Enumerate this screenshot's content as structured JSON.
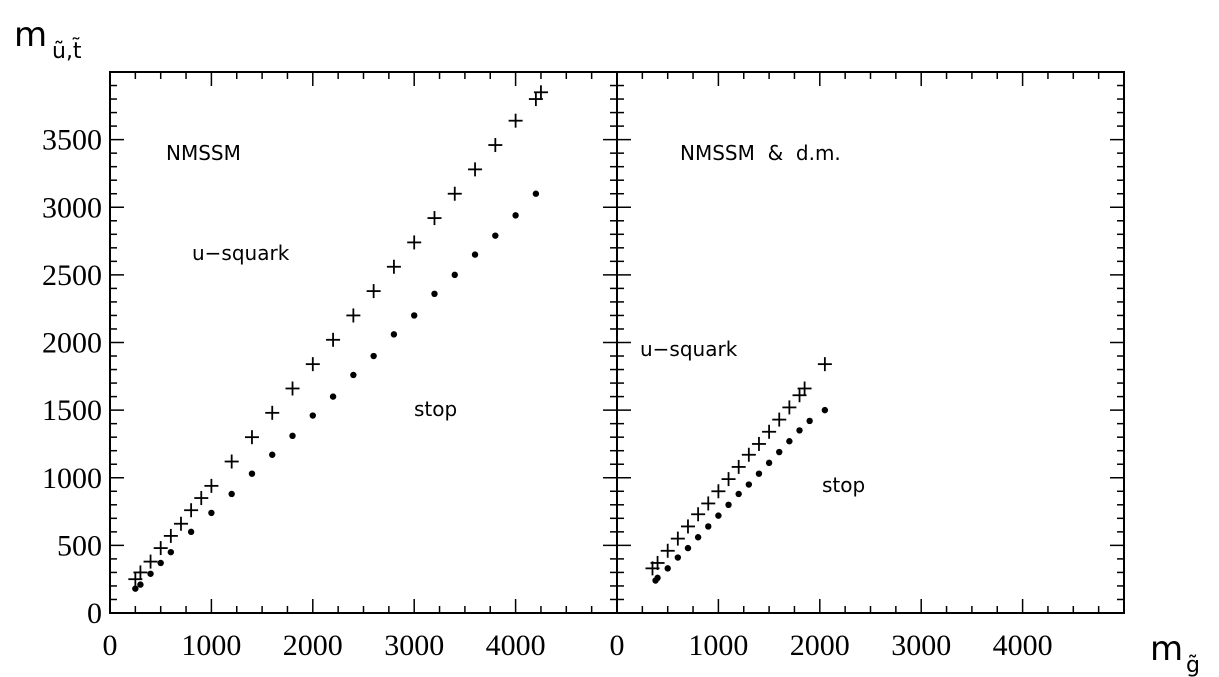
{
  "chart_data": [
    {
      "type": "scatter",
      "panel": "left",
      "annotations": [
        "NMSSM",
        "u-squark",
        "stop"
      ],
      "xlabel": "m_g̃",
      "ylabel": "m_ũ,t̃",
      "xlim": [
        0,
        5000
      ],
      "ylim": [
        0,
        4000
      ],
      "xticks": [
        0,
        1000,
        2000,
        3000,
        4000
      ],
      "yticks": [
        0,
        500,
        1000,
        1500,
        2000,
        2500,
        3000,
        3500
      ],
      "series": [
        {
          "name": "u-squark",
          "marker": "+",
          "x": [
            250,
            300,
            400,
            500,
            600,
            700,
            800,
            900,
            1000,
            1200,
            1400,
            1600,
            1800,
            2000,
            2200,
            2400,
            2600,
            2800,
            3000,
            3200,
            3400,
            3600,
            3800,
            4000,
            4200,
            4250
          ],
          "y": [
            250,
            300,
            380,
            480,
            570,
            660,
            760,
            850,
            940,
            1120,
            1300,
            1480,
            1660,
            1840,
            2020,
            2200,
            2380,
            2560,
            2740,
            2920,
            3100,
            3280,
            3460,
            3640,
            3800,
            3850
          ]
        },
        {
          "name": "stop",
          "marker": "dot",
          "x": [
            250,
            300,
            400,
            500,
            600,
            800,
            1000,
            1200,
            1400,
            1600,
            1800,
            2000,
            2200,
            2400,
            2600,
            2800,
            3000,
            3200,
            3400,
            3600,
            3800,
            4000,
            4200
          ],
          "y": [
            180,
            210,
            290,
            370,
            450,
            600,
            740,
            880,
            1030,
            1170,
            1310,
            1460,
            1600,
            1760,
            1900,
            2060,
            2200,
            2360,
            2500,
            2650,
            2790,
            2940,
            3100
          ]
        }
      ]
    },
    {
      "type": "scatter",
      "panel": "right",
      "annotations": [
        "NMSSM & d.m.",
        "u-squark",
        "stop"
      ],
      "xlabel": "m_g̃",
      "xlim": [
        0,
        5000
      ],
      "ylim": [
        0,
        4000
      ],
      "xticks": [
        0,
        1000,
        2000,
        3000,
        4000
      ],
      "series": [
        {
          "name": "u-squark",
          "marker": "+",
          "x": [
            350,
            400,
            500,
            600,
            700,
            800,
            900,
            1000,
            1100,
            1200,
            1300,
            1400,
            1500,
            1600,
            1700,
            1800,
            1850,
            2050
          ],
          "y": [
            330,
            370,
            460,
            550,
            640,
            730,
            810,
            900,
            990,
            1080,
            1170,
            1250,
            1340,
            1430,
            1520,
            1610,
            1660,
            1840
          ]
        },
        {
          "name": "stop",
          "marker": "dot",
          "x": [
            380,
            400,
            500,
            600,
            700,
            800,
            900,
            1000,
            1100,
            1200,
            1300,
            1400,
            1500,
            1600,
            1700,
            1800,
            1900,
            2050
          ],
          "y": [
            240,
            260,
            330,
            410,
            480,
            560,
            640,
            720,
            800,
            880,
            950,
            1030,
            1110,
            1190,
            1270,
            1350,
            1420,
            1500
          ]
        }
      ]
    }
  ],
  "labels": {
    "y_title_main": "m",
    "y_title_sub": "ũ,t̃",
    "x_title_main": "m",
    "x_title_sub": "g̃",
    "left_model": "NMSSM",
    "left_usquark": "u−squark",
    "left_stop": "stop",
    "right_model": "NMSSM  &  d.m.",
    "right_usquark": "u−squark",
    "right_stop": "stop"
  }
}
